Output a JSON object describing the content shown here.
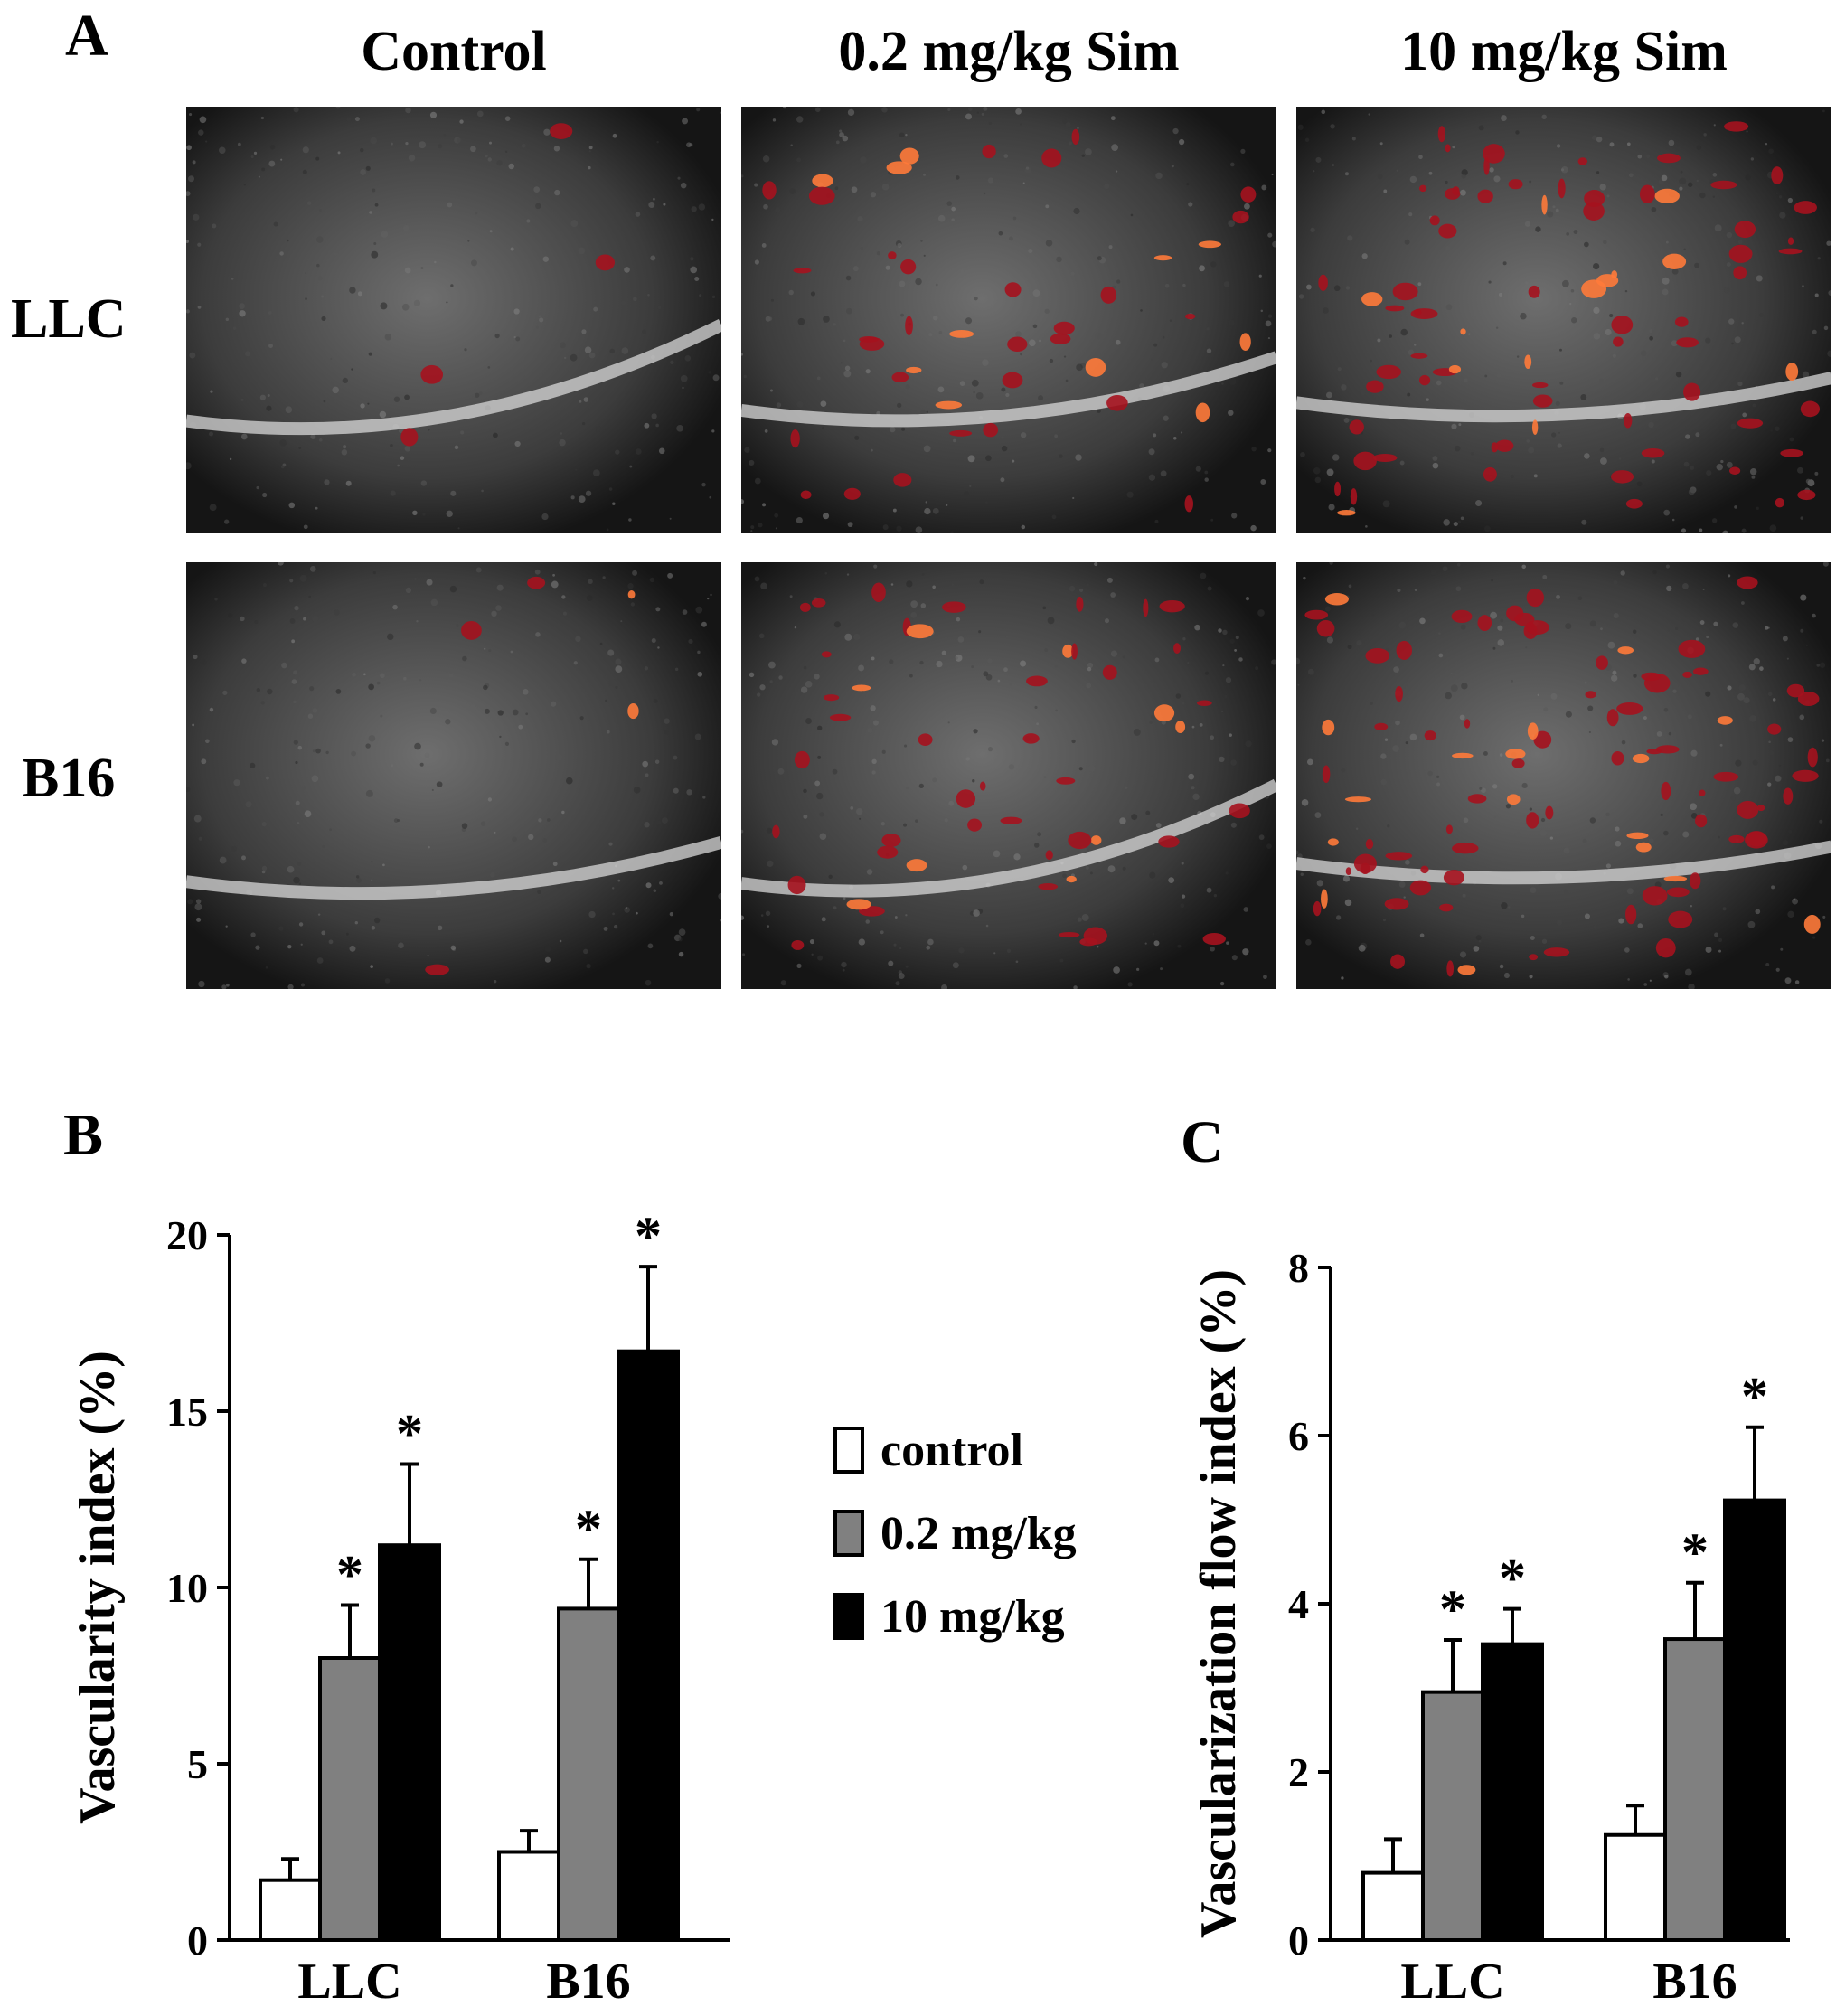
{
  "panel_labels": {
    "a": "A",
    "b": "B",
    "c": "C"
  },
  "panel_a": {
    "columns": [
      "Control",
      "0.2 mg/kg Sim",
      "10 mg/kg Sim"
    ],
    "rows": [
      "LLC",
      "B16"
    ]
  },
  "legend": [
    {
      "label": "control",
      "color": "#ffffff"
    },
    {
      "label": "0.2 mg/kg",
      "color": "#808080"
    },
    {
      "label": "10 mg/kg",
      "color": "#000000"
    }
  ],
  "chart_data": [
    {
      "type": "bar",
      "panel": "B",
      "categories": [
        "LLC",
        "B16"
      ],
      "ylabel": "Vascularity index (%)",
      "ylim": [
        0,
        20
      ],
      "yticks": [
        0,
        5,
        10,
        15,
        20
      ],
      "series": [
        {
          "name": "control",
          "color": "#ffffff",
          "values": [
            1.7,
            2.5
          ],
          "errors": [
            0.6,
            0.6
          ],
          "significant": [
            false,
            false
          ]
        },
        {
          "name": "0.2 mg/kg",
          "color": "#808080",
          "values": [
            8.0,
            9.4
          ],
          "errors": [
            1.5,
            1.4
          ],
          "significant": [
            true,
            true
          ]
        },
        {
          "name": "10 mg/kg",
          "color": "#000000",
          "values": [
            11.2,
            16.7
          ],
          "errors": [
            2.3,
            2.4
          ],
          "significant": [
            true,
            true
          ]
        }
      ],
      "significance_marker": "*"
    },
    {
      "type": "bar",
      "panel": "C",
      "categories": [
        "LLC",
        "B16"
      ],
      "ylabel": "Vascularization flow index (%)",
      "ylim": [
        0,
        8
      ],
      "yticks": [
        0,
        2,
        4,
        6,
        8
      ],
      "series": [
        {
          "name": "control",
          "color": "#ffffff",
          "values": [
            0.8,
            1.25
          ],
          "errors": [
            0.4,
            0.35
          ],
          "significant": [
            false,
            false
          ]
        },
        {
          "name": "0.2 mg/kg",
          "color": "#808080",
          "values": [
            2.95,
            3.58
          ],
          "errors": [
            0.62,
            0.67
          ],
          "significant": [
            true,
            true
          ]
        },
        {
          "name": "10 mg/kg",
          "color": "#000000",
          "values": [
            3.52,
            5.23
          ],
          "errors": [
            0.42,
            0.87
          ],
          "significant": [
            true,
            true
          ]
        }
      ],
      "significance_marker": "*"
    }
  ]
}
